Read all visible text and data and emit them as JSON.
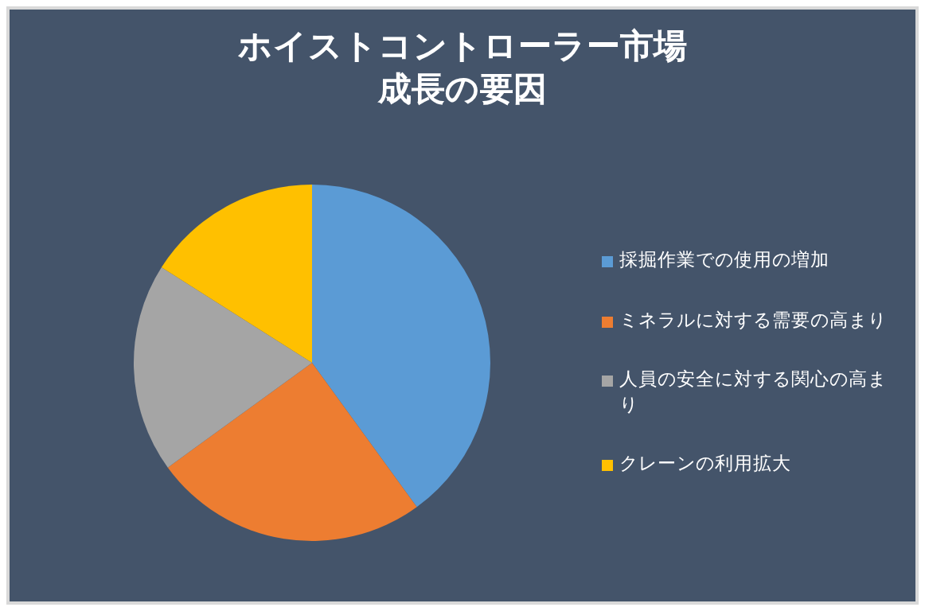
{
  "chart_data": {
    "type": "pie",
    "title": "ホイストコントローラー市場成長の要因",
    "categories": [
      "採掘作業での使用の増加",
      "ミネラルに対する需要の高まり",
      "人員の安全に対する関心の高まり",
      "クレーンの利用拡大"
    ],
    "values": [
      40,
      25,
      19,
      16
    ],
    "colors": [
      "#5b9bd5",
      "#ed7d31",
      "#a5a5a5",
      "#ffc000"
    ],
    "legend": "right"
  }
}
